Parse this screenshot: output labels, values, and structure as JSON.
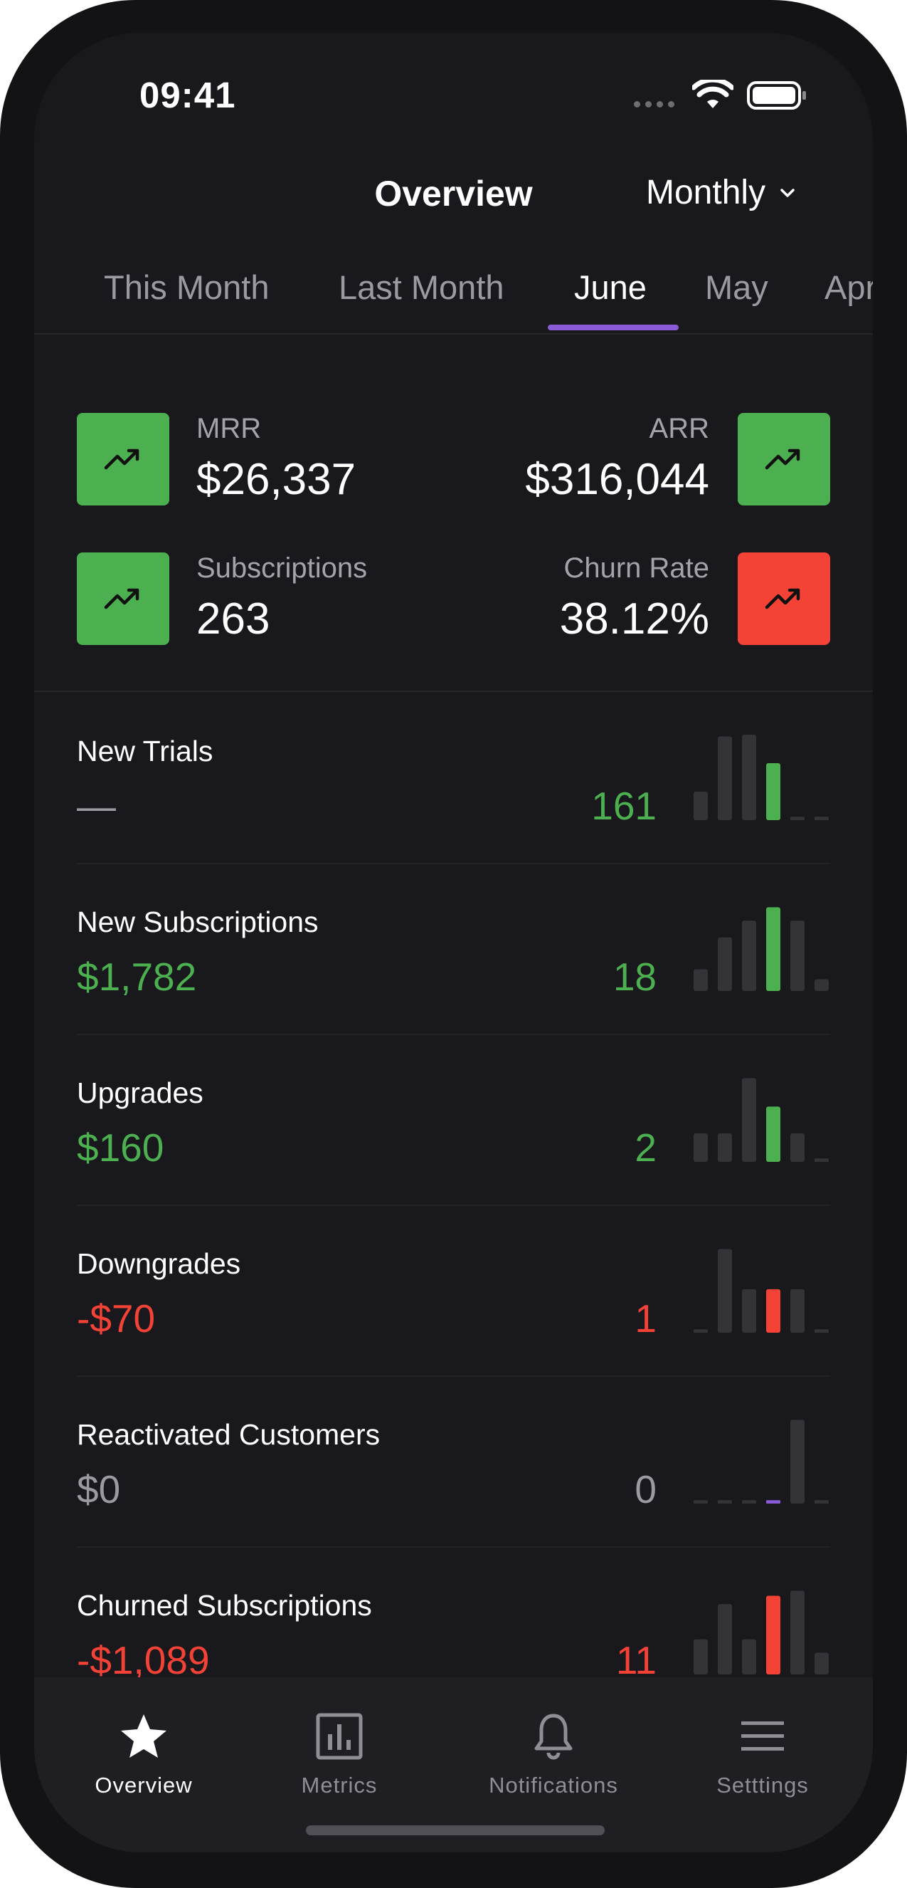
{
  "status_bar": {
    "time": "09:41"
  },
  "header": {
    "title": "Overview",
    "period": "Monthly"
  },
  "tabs": [
    {
      "label": "This Month",
      "active": false
    },
    {
      "label": "Last Month",
      "active": false
    },
    {
      "label": "June",
      "active": true
    },
    {
      "label": "May",
      "active": false
    },
    {
      "label": "Apr",
      "active": false
    }
  ],
  "kpis": {
    "mrr": {
      "label": "MRR",
      "value": "$26,337",
      "trend": "up",
      "color": "#4caf50"
    },
    "arr": {
      "label": "ARR",
      "value": "$316,044",
      "trend": "up",
      "color": "#4caf50"
    },
    "subscriptions": {
      "label": "Subscriptions",
      "value": "263",
      "trend": "up",
      "color": "#4caf50"
    },
    "churn_rate": {
      "label": "Churn Rate",
      "value": "38.12%",
      "trend": "up",
      "color": "#f44336"
    }
  },
  "colors": {
    "positive": "#4caf50",
    "negative": "#f44336",
    "neutral": "#9a9aa1",
    "accent": "#8b5ad6",
    "bar_inactive": "#333338"
  },
  "metrics": [
    {
      "name": "New Trials",
      "amount": "—",
      "count": "161",
      "amount_tone": "neutral",
      "count_tone": "positive",
      "bars": [
        0.34,
        1.0,
        1.02,
        0.68,
        0.04,
        0.04
      ],
      "highlight_index": 3,
      "highlight_tone": "positive"
    },
    {
      "name": "New Subscriptions",
      "amount": "$1,782",
      "count": "18",
      "amount_tone": "positive",
      "count_tone": "positive",
      "bars": [
        0.26,
        0.64,
        0.84,
        1.0,
        0.84,
        0.14
      ],
      "highlight_index": 3,
      "highlight_tone": "positive"
    },
    {
      "name": "Upgrades",
      "amount": "$160",
      "count": "2",
      "amount_tone": "positive",
      "count_tone": "positive",
      "bars": [
        0.34,
        0.34,
        1.0,
        0.66,
        0.34,
        0.04
      ],
      "highlight_index": 3,
      "highlight_tone": "positive"
    },
    {
      "name": "Downgrades",
      "amount": "-$70",
      "count": "1",
      "amount_tone": "negative",
      "count_tone": "negative",
      "bars": [
        0.04,
        1.0,
        0.52,
        0.52,
        0.52,
        0.04
      ],
      "highlight_index": 3,
      "highlight_tone": "negative"
    },
    {
      "name": "Reactivated Customers",
      "amount": "$0",
      "count": "0",
      "amount_tone": "neutral",
      "count_tone": "neutral",
      "bars": [
        0.04,
        0.04,
        0.04,
        0.04,
        1.0,
        0.04
      ],
      "highlight_index": 3,
      "highlight_tone": "accent"
    },
    {
      "name": "Churned Subscriptions",
      "amount": "-$1,089",
      "count": "11",
      "amount_tone": "negative",
      "count_tone": "negative",
      "bars": [
        0.42,
        0.84,
        0.42,
        0.94,
        1.0,
        0.26
      ],
      "highlight_index": 3,
      "highlight_tone": "negative"
    }
  ],
  "bottom_nav": [
    {
      "label": "Overview",
      "icon": "star-icon",
      "active": true
    },
    {
      "label": "Metrics",
      "icon": "bar-chart-icon",
      "active": false
    },
    {
      "label": "Notifications",
      "icon": "bell-icon",
      "active": false
    },
    {
      "label": "Setttings",
      "icon": "menu-icon",
      "active": false
    }
  ]
}
